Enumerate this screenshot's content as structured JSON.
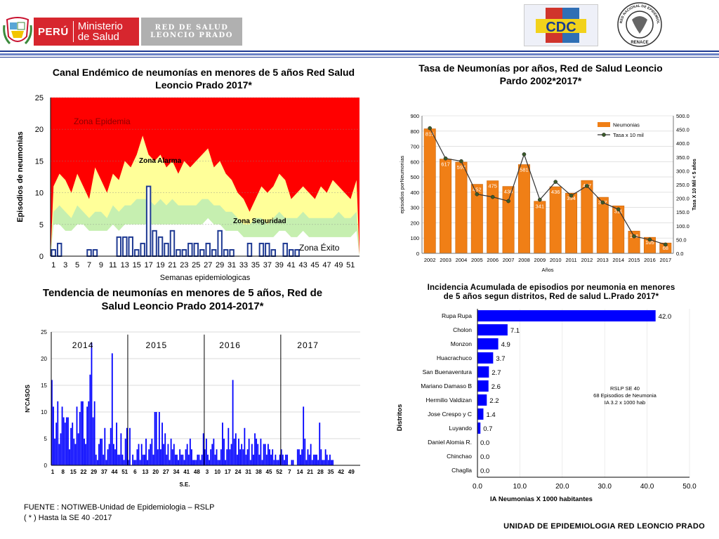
{
  "header": {
    "country": "PERÚ",
    "ministry_line1": "Ministerio",
    "ministry_line2": "de Salud",
    "network_line1": "RED DE SALUD",
    "network_line2": "LEONCIO PRADO",
    "cdc_logo_text": "CDC",
    "renace_text": "RED NACIONAL DE EPIDEMIOLOGIA",
    "renace_bottom": "RENACE"
  },
  "colors": {
    "epidemic": "#ff0000",
    "alarm": "#ffff99",
    "security": "#c6efb0",
    "success": "#ffffff",
    "cases_bar": "#1f3a93",
    "orange_bar": "#f07f16",
    "trend_bar": "#0000ff",
    "rule": "#1f3a93"
  },
  "chart_data": [
    {
      "type": "area",
      "title": "Canal Endémico de neumonías en menores de 5 años Red Salud Leoncio Prado 2017*",
      "xlabel": "Semanas epidemiologicas",
      "ylabel": "Episodios de neumonias",
      "ylim": [
        0,
        25
      ],
      "yticks": [
        0,
        5,
        10,
        15,
        20,
        25
      ],
      "xticks": [
        1,
        3,
        5,
        7,
        9,
        11,
        13,
        15,
        17,
        19,
        21,
        23,
        25,
        27,
        29,
        31,
        33,
        35,
        37,
        39,
        41,
        43,
        45,
        47,
        49,
        51
      ],
      "zones": [
        "Zona Epidemia",
        "Zona Alarma",
        "Zona Seguridad",
        "Zona Éxito"
      ],
      "weeks": [
        1,
        2,
        3,
        4,
        5,
        6,
        7,
        8,
        9,
        10,
        11,
        12,
        13,
        14,
        15,
        16,
        17,
        18,
        19,
        20,
        21,
        22,
        23,
        24,
        25,
        26,
        27,
        28,
        29,
        30,
        31,
        32,
        33,
        34,
        35,
        36,
        37,
        38,
        39,
        40,
        41,
        42,
        43,
        44,
        45,
        46,
        47,
        48,
        49,
        50,
        51,
        52
      ],
      "epidemic_threshold": [
        11,
        13,
        12,
        10,
        13,
        11,
        9,
        14,
        12,
        10,
        13,
        12,
        15,
        14,
        16,
        19,
        16,
        15,
        16,
        14,
        15,
        13,
        15,
        14,
        15,
        16,
        17,
        14,
        15,
        13,
        12,
        10,
        9,
        7,
        9,
        11,
        10,
        11,
        13,
        12,
        9,
        10,
        11,
        10,
        9,
        11,
        10,
        12,
        11,
        10,
        9,
        12
      ],
      "alarm_threshold": [
        7,
        8,
        7,
        6,
        8,
        7,
        6,
        7,
        7,
        6,
        8,
        7,
        8,
        8,
        9,
        9,
        9,
        8,
        9,
        8,
        9,
        8,
        8,
        8,
        8,
        9,
        9,
        8,
        8,
        7,
        7,
        6,
        5,
        5,
        6,
        6,
        5,
        6,
        7,
        6,
        6,
        6,
        7,
        6,
        6,
        6,
        6,
        6,
        7,
        6,
        6,
        7
      ],
      "security_threshold": [
        5,
        5,
        4,
        4,
        5,
        5,
        4,
        4,
        4,
        4,
        5,
        4,
        5,
        5,
        5,
        5,
        5,
        5,
        5,
        5,
        5,
        5,
        5,
        5,
        5,
        5,
        6,
        5,
        5,
        4,
        4,
        4,
        3,
        3,
        3,
        3,
        3,
        3,
        4,
        4,
        3,
        3,
        4,
        3,
        3,
        3,
        3,
        3,
        3,
        3,
        3,
        4
      ],
      "cases": [
        1,
        2,
        0,
        0,
        0,
        0,
        1,
        1,
        0,
        0,
        0,
        3,
        3,
        3,
        1,
        2,
        11,
        4,
        3,
        2,
        4,
        1,
        1,
        2,
        2,
        1,
        2,
        1,
        4,
        1,
        1,
        0,
        0,
        2,
        0,
        2,
        2,
        1,
        0,
        2,
        1,
        1,
        0,
        0,
        0,
        0,
        0,
        0,
        0,
        0,
        0,
        0
      ]
    },
    {
      "type": "bar",
      "title": "Tasa de Neumonías  por años, Red de Salud Leoncio Pardo 2002*2017*",
      "xlabel": "Años",
      "ylabel": "episodios porNeumonias",
      "y2label": "Tasa X 10 Mil < 5 años",
      "ylim": [
        0,
        900
      ],
      "y2lim": [
        0,
        500
      ],
      "yticks": [
        0,
        100,
        200,
        300,
        400,
        500,
        600,
        700,
        800,
        900
      ],
      "y2ticks": [
        "0.0",
        "50.0",
        "100.0",
        "150.0",
        "200.0",
        "250.0",
        "300.0",
        "350.0",
        "400.0",
        "450.0",
        "500.0"
      ],
      "categories": [
        "2002",
        "2003",
        "2004",
        "2005",
        "2006",
        "2007",
        "2008",
        "2009",
        "2010",
        "2011",
        "2012",
        "2013",
        "2014",
        "2015",
        "2016",
        "2017"
      ],
      "series": [
        {
          "name": "Neumonias",
          "values": [
            815,
            617,
            597,
            452,
            475,
            438,
            581,
            341,
            436,
            394,
            477,
            367,
            311,
            146,
            105,
            68
          ]
        },
        {
          "name": "Tasa x 10 mil",
          "values": [
            455,
            345,
            335,
            215,
            205,
            190,
            360,
            195,
            260,
            210,
            245,
            185,
            160,
            62,
            50,
            32
          ]
        }
      ],
      "bar_labels": [
        "815",
        "617",
        "597",
        "452",
        "475",
        "438",
        "581",
        "341",
        "436",
        "394",
        "477",
        "367",
        "311",
        "146",
        "105",
        "68"
      ]
    },
    {
      "type": "bar",
      "title": "Tendencia de neumonías en menores de 5 años, Red de Salud Leoncio Prado  2014-2017*",
      "xlabel": "S.E.",
      "ylabel": "N°CASOS",
      "ylim": [
        0,
        25
      ],
      "yticks": [
        0,
        5,
        10,
        15,
        20,
        25
      ],
      "xticks": [
        "1",
        "8",
        "15",
        "22",
        "29",
        "37",
        "44",
        "51",
        "6",
        "13",
        "20",
        "27",
        "34",
        "41",
        "48",
        "3",
        "10",
        "17",
        "24",
        "31",
        "38",
        "45",
        "52",
        "7",
        "14",
        "21",
        "28",
        "35",
        "42",
        "49"
      ],
      "years": [
        "2014",
        "2015",
        "2016",
        "2017"
      ],
      "values": [
        16,
        11,
        5,
        8,
        12,
        4,
        6,
        11,
        9,
        8,
        9,
        9,
        3,
        7,
        8,
        5,
        4,
        11,
        6,
        10,
        12,
        12,
        5,
        4,
        11,
        12,
        17,
        23,
        9,
        12,
        2,
        1,
        4,
        5,
        5,
        2,
        7,
        1,
        3,
        4,
        7,
        21,
        4,
        3,
        8,
        2,
        2,
        6,
        2,
        1,
        5,
        7,
        1,
        7,
        0,
        2,
        1,
        1,
        3,
        4,
        1,
        4,
        2,
        2,
        5,
        1,
        3,
        4,
        5,
        2,
        10,
        10,
        3,
        10,
        3,
        8,
        4,
        6,
        2,
        4,
        1,
        5,
        3,
        4,
        2,
        2,
        1,
        3,
        2,
        2,
        1,
        3,
        4,
        2,
        5,
        3,
        1,
        1,
        1,
        2,
        2,
        1,
        2,
        6,
        3,
        5,
        2,
        1,
        3,
        4,
        5,
        2,
        3,
        1,
        1,
        3,
        8,
        5,
        1,
        3,
        7,
        3,
        4,
        16,
        5,
        6,
        2,
        5,
        3,
        4,
        3,
        7,
        2,
        3,
        5,
        1,
        4,
        2,
        6,
        5,
        4,
        2,
        5,
        1,
        4,
        4,
        2,
        4,
        3,
        2,
        3,
        1,
        2,
        1,
        1,
        2,
        3,
        2,
        1,
        2,
        2,
        0,
        0,
        1,
        1,
        0,
        0,
        3,
        3,
        2,
        3,
        11,
        5,
        1,
        3,
        2,
        4,
        1,
        2,
        2,
        2,
        1,
        8,
        3,
        1,
        1,
        3,
        2,
        1,
        2,
        1,
        1
      ]
    },
    {
      "type": "bar",
      "orientation": "horizontal",
      "title": "Incidencia  Acumulada  de  episodios  por  neumonia  en menores  de  5  años  segun  distritos,  Red  de  salud  L.Prado 2017*",
      "xlabel": "IA Neumonias X 1000 habitantes",
      "ylabel": "Distritos",
      "xlim": [
        0,
        50
      ],
      "xticks": [
        "0.0",
        "10.0",
        "20.0",
        "30.0",
        "40.0",
        "50.0"
      ],
      "categories": [
        "Rupa Rupa",
        "Cholon",
        "Monzon",
        "Huacrachuco",
        "San Buenaventura",
        "Mariano Damaso B",
        "Hermilio Valdizan",
        "Jose Crespo y C",
        "Luyando",
        "Daniel Alomia R.",
        "Chinchao",
        "Chaglla"
      ],
      "values": [
        42.0,
        7.1,
        4.9,
        3.7,
        2.7,
        2.6,
        2.2,
        1.4,
        0.7,
        0.0,
        0.0,
        0.0
      ],
      "value_labels": [
        "42.0",
        "7.1",
        "4.9",
        "3.7",
        "2.7",
        "2.6",
        "2.2",
        "1.4",
        "0.7",
        "0.0",
        "0.0",
        "0.0"
      ],
      "annotation": [
        "RSLP SE 40",
        "68 Episodios de Neumonia",
        "IA 3.2  x 1000 hab"
      ]
    }
  ],
  "footer": {
    "source": "FUENTE : NOTIWEB-Unidad de Epidemiologia – RSLP",
    "note": "( * ) Hasta la SE  40 -2017",
    "unit": "UNIDAD  DE EPIDEMIOLOGIA RED LEONCIO PRADO"
  }
}
